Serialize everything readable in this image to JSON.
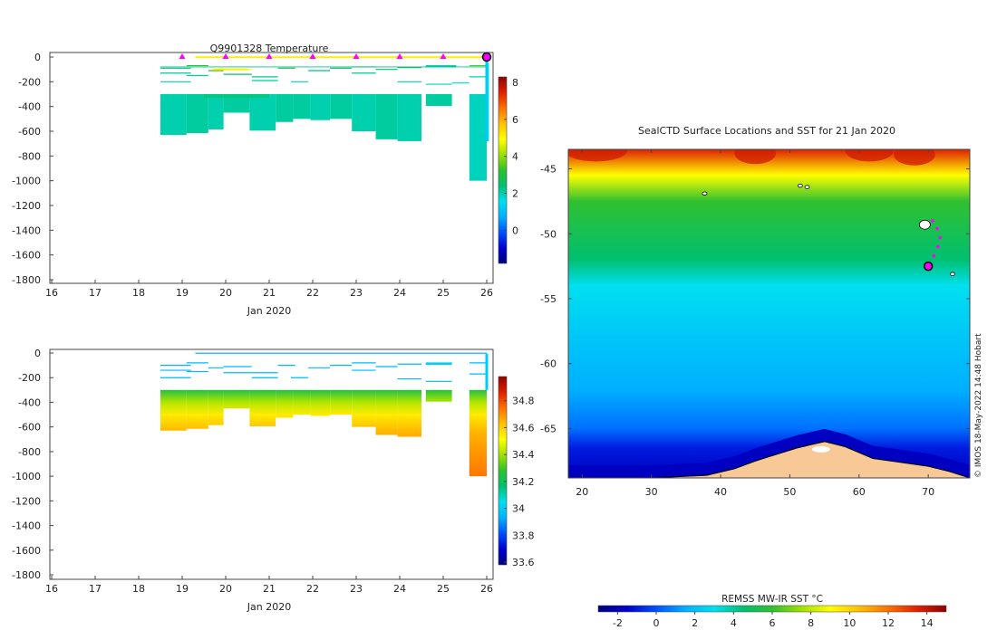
{
  "colors": {
    "jet": [
      "#000080",
      "#0000d0",
      "#0050ff",
      "#00b0ff",
      "#00e0f0",
      "#00c070",
      "#30c030",
      "#a0e000",
      "#ffff00",
      "#ffc000",
      "#ff7000",
      "#e02000",
      "#900000"
    ],
    "marker": "#ff00ff",
    "land": "#f8c896",
    "axis": "#444444"
  },
  "chart_data": [
    {
      "id": "temperature",
      "type": "heatmap",
      "title": "Q9901328  Temperature",
      "xlabel": "Jan 2020",
      "ylabel": "",
      "xlim": [
        16,
        26
      ],
      "ylim": [
        -1850,
        0
      ],
      "x_ticks": [
        16,
        17,
        18,
        19,
        20,
        21,
        22,
        23,
        24,
        25,
        26
      ],
      "y_ticks": [
        0,
        -200,
        -400,
        -600,
        -800,
        -1000,
        -1200,
        -1400,
        -1600,
        -1800
      ],
      "colorbar": {
        "min": -1.8,
        "max": 8.3,
        "ticks": [
          0,
          2,
          4,
          6,
          8
        ]
      },
      "day_markers": [
        19,
        20,
        21,
        22,
        23,
        24,
        25,
        26
      ],
      "surface_line_color": "#ffee00",
      "deep_blocks": [
        {
          "x0": 18.5,
          "x1": 19.1,
          "y0": -300,
          "y1": -630,
          "value": 2.0
        },
        {
          "x0": 19.1,
          "x1": 19.6,
          "y0": -300,
          "y1": -615,
          "value": 2.1
        },
        {
          "x0": 19.6,
          "x1": 19.95,
          "y0": -300,
          "y1": -585,
          "value": 2.0
        },
        {
          "x0": 19.95,
          "x1": 20.55,
          "y0": -300,
          "y1": -450,
          "value": 2.1
        },
        {
          "x0": 20.55,
          "x1": 21.15,
          "y0": -300,
          "y1": -595,
          "value": 2.0
        },
        {
          "x0": 21.15,
          "x1": 21.55,
          "y0": -300,
          "y1": -525,
          "value": 2.1
        },
        {
          "x0": 21.55,
          "x1": 21.95,
          "y0": -300,
          "y1": -500,
          "value": 2.1
        },
        {
          "x0": 21.95,
          "x1": 22.4,
          "y0": -300,
          "y1": -510,
          "value": 2.0
        },
        {
          "x0": 22.4,
          "x1": 22.9,
          "y0": -300,
          "y1": -500,
          "value": 2.1
        },
        {
          "x0": 22.9,
          "x1": 23.45,
          "y0": -300,
          "y1": -600,
          "value": 2.0
        },
        {
          "x0": 23.45,
          "x1": 23.95,
          "y0": -300,
          "y1": -665,
          "value": 2.1
        },
        {
          "x0": 23.95,
          "x1": 24.5,
          "y0": -300,
          "y1": -680,
          "value": 2.0
        },
        {
          "x0": 24.6,
          "x1": 25.2,
          "y0": -300,
          "y1": -395,
          "value": 2.1
        },
        {
          "x0": 25.6,
          "x1": 26.0,
          "y0": -300,
          "y1": -1000,
          "value": 1.9
        },
        {
          "x0": 26.0,
          "x1": 26.05,
          "y0": -50,
          "y1": -680,
          "value": 1.5
        }
      ],
      "shallow_lines": [
        {
          "x0": 18.5,
          "x1": 19.2,
          "y": -90,
          "value": 2.3
        },
        {
          "x0": 18.5,
          "x1": 19.2,
          "y": -130,
          "value": 2.2
        },
        {
          "x0": 18.5,
          "x1": 19.2,
          "y": -200,
          "value": 2.0
        },
        {
          "x0": 19.1,
          "x1": 19.6,
          "y": -70,
          "value": 3.0
        },
        {
          "x0": 19.1,
          "x1": 19.6,
          "y": -150,
          "value": 2.1
        },
        {
          "x0": 19.6,
          "x1": 19.95,
          "y": -110,
          "value": 3.2
        },
        {
          "x0": 19.95,
          "x1": 20.6,
          "y": -100,
          "value": 5.0
        },
        {
          "x0": 19.95,
          "x1": 20.6,
          "y": -140,
          "value": 2.5
        },
        {
          "x0": 20.6,
          "x1": 21.2,
          "y": -160,
          "value": 2.2
        },
        {
          "x0": 20.6,
          "x1": 21.2,
          "y": -190,
          "value": 2.1
        },
        {
          "x0": 21.2,
          "x1": 21.6,
          "y": -90,
          "value": 3.0
        },
        {
          "x0": 21.5,
          "x1": 21.9,
          "y": -200,
          "value": 2.0
        },
        {
          "x0": 21.9,
          "x1": 22.4,
          "y": -110,
          "value": 2.3
        },
        {
          "x0": 22.4,
          "x1": 22.9,
          "y": -90,
          "value": 2.6
        },
        {
          "x0": 22.9,
          "x1": 23.45,
          "y": -80,
          "value": 3.0
        },
        {
          "x0": 22.9,
          "x1": 23.45,
          "y": -130,
          "value": 2.2
        },
        {
          "x0": 23.45,
          "x1": 23.95,
          "y": -100,
          "value": 2.4
        },
        {
          "x0": 23.95,
          "x1": 24.5,
          "y": -85,
          "value": 2.6
        },
        {
          "x0": 23.95,
          "x1": 24.5,
          "y": -200,
          "value": 2.0
        },
        {
          "x0": 24.6,
          "x1": 25.2,
          "y": -80,
          "value": 2.2
        },
        {
          "x0": 24.6,
          "x1": 25.2,
          "y": -220,
          "value": 1.9
        },
        {
          "x0": 25.2,
          "x1": 25.6,
          "y": -210,
          "value": 1.8
        },
        {
          "x0": 25.6,
          "x1": 26.0,
          "y": -70,
          "value": 3.5
        },
        {
          "x0": 25.6,
          "x1": 26.0,
          "y": -160,
          "value": 2.0
        }
      ]
    },
    {
      "id": "salinity",
      "type": "heatmap",
      "title": "",
      "xlabel": "Jan 2020",
      "ylabel": "",
      "xlim": [
        16,
        26
      ],
      "ylim": [
        -1850,
        0
      ],
      "x_ticks": [
        16,
        17,
        18,
        19,
        20,
        21,
        22,
        23,
        24,
        25,
        26
      ],
      "y_ticks": [
        0,
        -200,
        -400,
        -600,
        -800,
        -1000,
        -1200,
        -1400,
        -1600,
        -1800
      ],
      "colorbar": {
        "min": 33.58,
        "max": 34.98,
        "ticks": [
          33.6,
          33.8,
          34,
          34.2,
          34.4,
          34.6,
          34.8
        ]
      },
      "surface_line_color": "#30c0ff",
      "deep_blocks": [
        {
          "x0": 18.5,
          "x1": 19.1,
          "y0": -300,
          "y1": -630
        },
        {
          "x0": 19.1,
          "x1": 19.6,
          "y0": -300,
          "y1": -615
        },
        {
          "x0": 19.6,
          "x1": 19.95,
          "y0": -300,
          "y1": -585
        },
        {
          "x0": 19.95,
          "x1": 20.55,
          "y0": -300,
          "y1": -450
        },
        {
          "x0": 20.55,
          "x1": 21.15,
          "y0": -300,
          "y1": -595
        },
        {
          "x0": 21.15,
          "x1": 21.55,
          "y0": -300,
          "y1": -525
        },
        {
          "x0": 21.55,
          "x1": 21.95,
          "y0": -300,
          "y1": -500
        },
        {
          "x0": 21.95,
          "x1": 22.4,
          "y0": -300,
          "y1": -510
        },
        {
          "x0": 22.4,
          "x1": 22.9,
          "y0": -300,
          "y1": -500
        },
        {
          "x0": 22.9,
          "x1": 23.45,
          "y0": -300,
          "y1": -600
        },
        {
          "x0": 23.45,
          "x1": 23.95,
          "y0": -300,
          "y1": -665
        },
        {
          "x0": 23.95,
          "x1": 24.5,
          "y0": -300,
          "y1": -680
        },
        {
          "x0": 24.6,
          "x1": 25.2,
          "y0": -300,
          "y1": -395
        },
        {
          "x0": 25.6,
          "x1": 26.0,
          "y0": -300,
          "y1": -1000
        }
      ],
      "profile_gradient": [
        {
          "depth": -300,
          "value": 34.25
        },
        {
          "depth": -400,
          "value": 34.42
        },
        {
          "depth": -500,
          "value": 34.55
        },
        {
          "depth": -650,
          "value": 34.65
        },
        {
          "depth": -1000,
          "value": 34.74
        }
      ],
      "shallow_lines": [
        {
          "x0": 18.5,
          "x1": 19.2,
          "y": -100
        },
        {
          "x0": 18.5,
          "x1": 19.2,
          "y": -140
        },
        {
          "x0": 18.5,
          "x1": 19.2,
          "y": -200
        },
        {
          "x0": 19.1,
          "x1": 19.6,
          "y": -80
        },
        {
          "x0": 19.1,
          "x1": 19.6,
          "y": -150
        },
        {
          "x0": 19.6,
          "x1": 19.95,
          "y": -120
        },
        {
          "x0": 19.95,
          "x1": 20.6,
          "y": -110
        },
        {
          "x0": 19.95,
          "x1": 20.6,
          "y": -160
        },
        {
          "x0": 20.6,
          "x1": 21.2,
          "y": -160
        },
        {
          "x0": 20.6,
          "x1": 21.2,
          "y": -200
        },
        {
          "x0": 21.2,
          "x1": 21.6,
          "y": -100
        },
        {
          "x0": 21.5,
          "x1": 21.9,
          "y": -200
        },
        {
          "x0": 21.9,
          "x1": 22.4,
          "y": -120
        },
        {
          "x0": 22.4,
          "x1": 22.9,
          "y": -100
        },
        {
          "x0": 22.9,
          "x1": 23.45,
          "y": -80
        },
        {
          "x0": 22.9,
          "x1": 23.45,
          "y": -140
        },
        {
          "x0": 23.45,
          "x1": 23.95,
          "y": -110
        },
        {
          "x0": 23.95,
          "x1": 24.5,
          "y": -90
        },
        {
          "x0": 23.95,
          "x1": 24.5,
          "y": -210
        },
        {
          "x0": 24.6,
          "x1": 25.2,
          "y": -90
        },
        {
          "x0": 24.6,
          "x1": 25.2,
          "y": -230
        },
        {
          "x0": 25.6,
          "x1": 26.0,
          "y": -80
        },
        {
          "x0": 25.6,
          "x1": 26.0,
          "y": -170
        }
      ],
      "shallow_value": 33.95
    },
    {
      "id": "sst_map",
      "type": "heatmap",
      "title": "SealCTD Surface Locations and SST for 21 Jan 2020",
      "xlim": [
        18,
        76
      ],
      "ylim": [
        -68.8,
        -43.5
      ],
      "x_ticks": [
        20,
        30,
        40,
        50,
        60,
        70
      ],
      "y_ticks": [
        -45,
        -50,
        -55,
        -60,
        -65
      ],
      "colorbar": {
        "label": "REMSS MW-IR SST °C",
        "min": -3,
        "max": 15,
        "ticks": [
          -2,
          0,
          2,
          4,
          6,
          8,
          10,
          12,
          14
        ]
      },
      "sst_by_latitude": [
        {
          "lat": -43.5,
          "value": 13.5
        },
        {
          "lat": -45.5,
          "value": 9.0
        },
        {
          "lat": -47.5,
          "value": 6.0
        },
        {
          "lat": -52,
          "value": 4.5
        },
        {
          "lat": -54,
          "value": 3.0
        },
        {
          "lat": -58,
          "value": 2.2
        },
        {
          "lat": -62,
          "value": 1.5
        },
        {
          "lat": -65,
          "value": 0.5
        },
        {
          "lat": -66.5,
          "value": -1.0
        },
        {
          "lat": -68.8,
          "value": -1.8
        }
      ],
      "seal_track": [
        {
          "lon": 70.6,
          "lat": -49.0
        },
        {
          "lon": 71.3,
          "lat": -49.6
        },
        {
          "lon": 71.7,
          "lat": -50.3
        },
        {
          "lon": 71.4,
          "lat": -51.0
        },
        {
          "lon": 70.8,
          "lat": -51.7
        },
        {
          "lon": 70.0,
          "lat": -52.5
        }
      ],
      "current_position": {
        "lon": 70.0,
        "lat": -52.5
      },
      "islands": [
        {
          "lon": 69.5,
          "lat": -49.3
        },
        {
          "lon": 51.5,
          "lat": -46.3
        },
        {
          "lon": 52.5,
          "lat": -46.4
        },
        {
          "lon": 37.7,
          "lat": -46.9
        },
        {
          "lon": 73.5,
          "lat": -53.1
        }
      ],
      "antarctic_coast": [
        {
          "lon": 18,
          "lat": -68.8
        },
        {
          "lon": 30,
          "lat": -68.8
        },
        {
          "lon": 38,
          "lat": -68.6
        },
        {
          "lon": 42,
          "lat": -68.1
        },
        {
          "lon": 45,
          "lat": -67.5
        },
        {
          "lon": 48,
          "lat": -67.0
        },
        {
          "lon": 51,
          "lat": -66.5
        },
        {
          "lon": 55,
          "lat": -66.0
        },
        {
          "lon": 58,
          "lat": -66.4
        },
        {
          "lon": 62,
          "lat": -67.3
        },
        {
          "lon": 66,
          "lat": -67.6
        },
        {
          "lon": 70,
          "lat": -67.9
        },
        {
          "lon": 73,
          "lat": -68.3
        },
        {
          "lon": 76,
          "lat": -68.8
        }
      ]
    }
  ],
  "credit": "© IMOS 18-May-2022 14:48 Hobart"
}
